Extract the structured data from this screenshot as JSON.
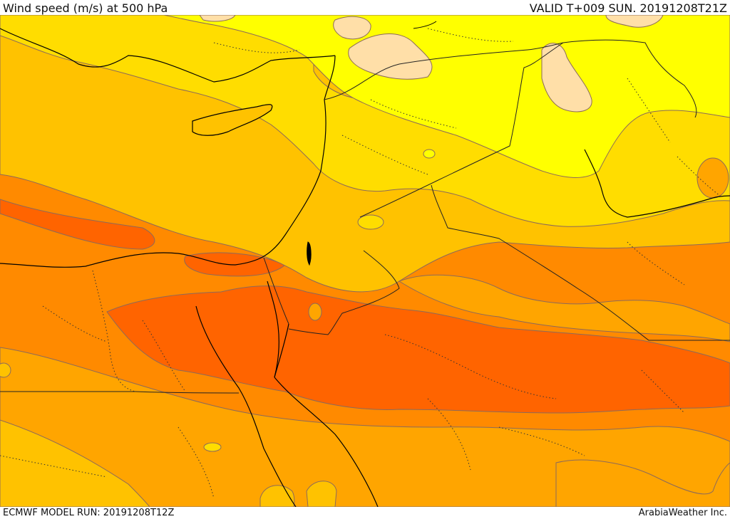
{
  "header": {
    "title": "Wind speed (m/s) at 500 hPa",
    "valid": "VALID T+009 SUN. 20191208T21Z"
  },
  "footer": {
    "model_run": "ECMWF MODEL RUN: 20191208T12Z",
    "credit": "ArabiaWeather Inc."
  },
  "map": {
    "fill_colors": {
      "lightest": "#ffdfa8",
      "yellow": "#ffff00",
      "gold": "#ffdd00",
      "amber": "#ffc200",
      "orange_light": "#ffa500",
      "orange": "#ff8a00",
      "orange_dark": "#ff6400"
    },
    "contour_color": "#8c6a5a",
    "coast_color": "#000000",
    "border_color": "#222222"
  }
}
